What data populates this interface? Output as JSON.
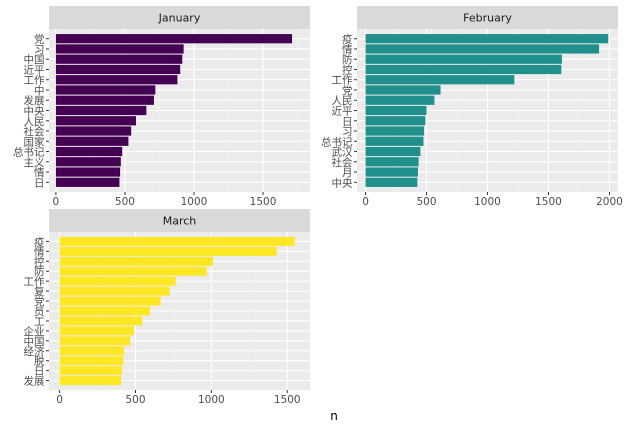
{
  "chart_data": [
    {
      "type": "bar",
      "orientation": "horizontal",
      "title": "January",
      "categories": [
        "党",
        "习",
        "中国",
        "近平",
        "工作",
        "中",
        "发展",
        "中央",
        "人民",
        "社会",
        "国家",
        "总书记",
        "主义",
        "情",
        "日"
      ],
      "values": [
        1710,
        925,
        915,
        900,
        880,
        720,
        710,
        655,
        580,
        545,
        525,
        480,
        470,
        465,
        460
      ],
      "xlim": [
        -50,
        1840
      ],
      "xticks": [
        0,
        500,
        1000,
        1500
      ],
      "color": "#440154"
    },
    {
      "type": "bar",
      "orientation": "horizontal",
      "title": "February",
      "categories": [
        "疫",
        "情",
        "防",
        "控",
        "工作",
        "党",
        "人民",
        "近平",
        "日",
        "习",
        "总书记",
        "武汉",
        "社会",
        "月",
        "中央"
      ],
      "values": [
        1990,
        1915,
        1610,
        1605,
        1220,
        615,
        565,
        500,
        490,
        480,
        475,
        450,
        435,
        430,
        425
      ],
      "xlim": [
        -70,
        2070
      ],
      "xticks": [
        0,
        500,
        1000,
        1500,
        2000
      ],
      "color": "#21908c"
    },
    {
      "type": "bar",
      "orientation": "horizontal",
      "title": "March",
      "categories": [
        "疫",
        "情",
        "控",
        "防",
        "工作",
        "复",
        "党",
        "员",
        "工",
        "企业",
        "中国",
        "经济",
        "脱",
        "日",
        "发展"
      ],
      "values": [
        1550,
        1430,
        1010,
        970,
        765,
        725,
        665,
        595,
        545,
        490,
        465,
        425,
        420,
        410,
        405
      ],
      "xlim": [
        -70,
        1650
      ],
      "xticks": [
        0,
        500,
        1000,
        1500
      ],
      "color": "#fde725"
    }
  ],
  "shared_xlabel": "n"
}
